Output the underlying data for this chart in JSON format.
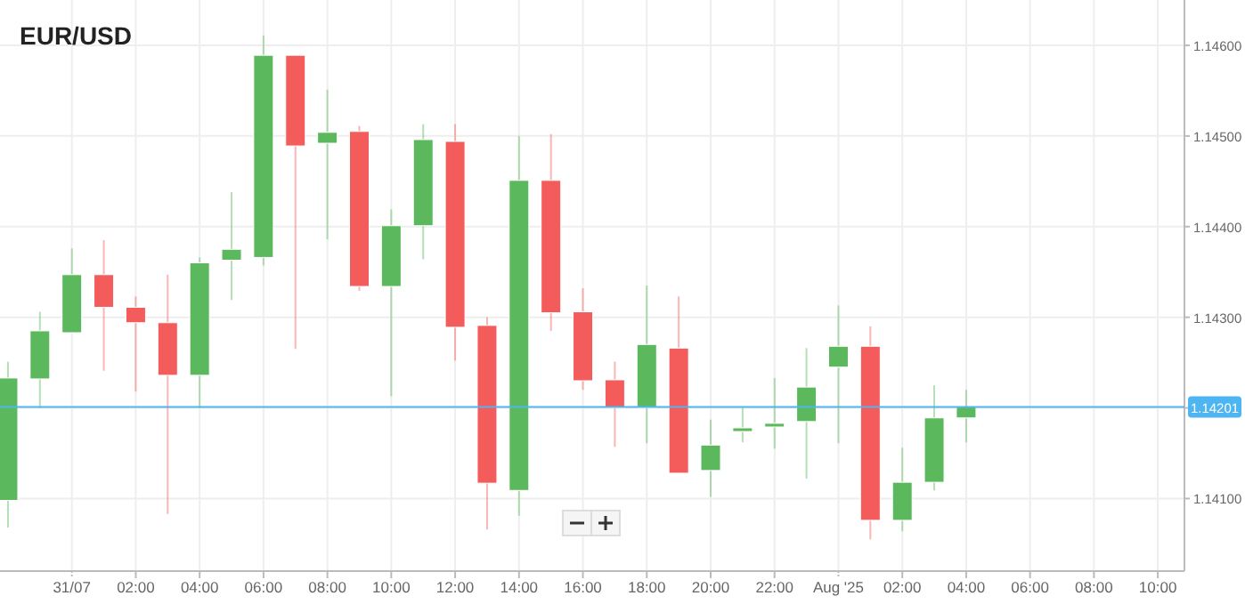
{
  "chart_data": {
    "type": "candlestick",
    "title": "EUR/USD",
    "x": [
      "2025-07-30T22:00",
      "2025-07-30T23:00",
      "2025-07-31T00:00",
      "2025-07-31T01:00",
      "2025-07-31T02:00",
      "2025-07-31T03:00",
      "2025-07-31T04:00",
      "2025-07-31T05:00",
      "2025-07-31T06:00",
      "2025-07-31T07:00",
      "2025-07-31T08:00",
      "2025-07-31T09:00",
      "2025-07-31T10:00",
      "2025-07-31T11:00",
      "2025-07-31T12:00",
      "2025-07-31T13:00",
      "2025-07-31T14:00",
      "2025-07-31T15:00",
      "2025-07-31T16:00",
      "2025-07-31T17:00",
      "2025-07-31T18:00",
      "2025-07-31T19:00",
      "2025-07-31T20:00",
      "2025-07-31T21:00",
      "2025-07-31T22:00",
      "2025-07-31T23:00",
      "2025-08-01T00:00",
      "2025-08-01T01:00",
      "2025-08-01T02:00",
      "2025-08-01T03:00",
      "2025-08-01T04:00"
    ],
    "ohlc": [
      [
        1.14098,
        1.14251,
        1.14068,
        1.14233
      ],
      [
        1.14232,
        1.14306,
        1.142,
        1.14285
      ],
      [
        1.14283,
        1.14376,
        1.14283,
        1.14347
      ],
      [
        1.14347,
        1.14385,
        1.14241,
        1.14311
      ],
      [
        1.14311,
        1.14323,
        1.14218,
        1.14294
      ],
      [
        1.14294,
        1.14347,
        1.14083,
        1.14236
      ],
      [
        1.14236,
        1.14366,
        1.142,
        1.1436
      ],
      [
        1.14363,
        1.14438,
        1.14319,
        1.14375
      ],
      [
        1.14366,
        1.14611,
        1.14357,
        1.14589
      ],
      [
        1.14589,
        1.14589,
        1.14265,
        1.14489
      ],
      [
        1.14492,
        1.14551,
        1.14386,
        1.14504
      ],
      [
        1.14505,
        1.14511,
        1.14329,
        1.14334
      ],
      [
        1.14334,
        1.14419,
        1.14213,
        1.14401
      ],
      [
        1.14401,
        1.14513,
        1.14364,
        1.14496
      ],
      [
        1.14494,
        1.14513,
        1.14252,
        1.14289
      ],
      [
        1.14291,
        1.143,
        1.14066,
        1.14117
      ],
      [
        1.14109,
        1.145,
        1.14081,
        1.14451
      ],
      [
        1.14451,
        1.14502,
        1.14285,
        1.14305
      ],
      [
        1.14306,
        1.14332,
        1.1422,
        1.1423
      ],
      [
        1.14231,
        1.14251,
        1.14157,
        1.142
      ],
      [
        1.142,
        1.14335,
        1.14161,
        1.1427
      ],
      [
        1.14266,
        1.14323,
        1.14128,
        1.14128
      ],
      [
        1.14131,
        1.14187,
        1.14102,
        1.14159
      ],
      [
        1.14174,
        1.142,
        1.14162,
        1.14178
      ],
      [
        1.14179,
        1.14233,
        1.14155,
        1.14183
      ],
      [
        1.14185,
        1.14266,
        1.14122,
        1.14223
      ],
      [
        1.14245,
        1.14313,
        1.14161,
        1.14268
      ],
      [
        1.14268,
        1.1429,
        1.14055,
        1.14076
      ],
      [
        1.14076,
        1.14156,
        1.14064,
        1.14118
      ],
      [
        1.14118,
        1.14225,
        1.14109,
        1.14189
      ],
      [
        1.14189,
        1.1422,
        1.14162,
        1.14201
      ]
    ],
    "colors": [
      "#5cb85c",
      "#5cb85c",
      "#5cb85c",
      "#f45b5b",
      "#f45b5b",
      "#f45b5b",
      "#5cb85c",
      "#5cb85c",
      "#5cb85c",
      "#f45b5b",
      "#5cb85c",
      "#f45b5b",
      "#5cb85c",
      "#5cb85c",
      "#f45b5b",
      "#f45b5b",
      "#5cb85c",
      "#f45b5b",
      "#f45b5b",
      "#f45b5b",
      "#5cb85c",
      "#f45b5b",
      "#5cb85c",
      "#5cb85c",
      "#5cb85c",
      "#5cb85c",
      "#5cb85c",
      "#f45b5b",
      "#5cb85c",
      "#5cb85c",
      "#5cb85c"
    ],
    "xlim": [
      "2025-07-30T21:45",
      "2025-08-01T10:50"
    ],
    "xticks": [
      {
        "value": "2025-07-31T00:00",
        "label": "31/07"
      },
      {
        "value": "2025-07-31T02:00",
        "label": "02:00"
      },
      {
        "value": "2025-07-31T04:00",
        "label": "04:00"
      },
      {
        "value": "2025-07-31T06:00",
        "label": "06:00"
      },
      {
        "value": "2025-07-31T08:00",
        "label": "08:00"
      },
      {
        "value": "2025-07-31T10:00",
        "label": "10:00"
      },
      {
        "value": "2025-07-31T12:00",
        "label": "12:00"
      },
      {
        "value": "2025-07-31T14:00",
        "label": "14:00"
      },
      {
        "value": "2025-07-31T16:00",
        "label": "16:00"
      },
      {
        "value": "2025-07-31T18:00",
        "label": "18:00"
      },
      {
        "value": "2025-07-31T20:00",
        "label": "20:00"
      },
      {
        "value": "2025-07-31T22:00",
        "label": "22:00"
      },
      {
        "value": "2025-08-01T00:00",
        "label": "Aug '25"
      },
      {
        "value": "2025-08-01T02:00",
        "label": "02:00"
      },
      {
        "value": "2025-08-01T04:00",
        "label": "04:00"
      },
      {
        "value": "2025-08-01T06:00",
        "label": "06:00"
      },
      {
        "value": "2025-08-01T08:00",
        "label": "08:00"
      },
      {
        "value": "2025-08-01T10:00",
        "label": "10:00"
      }
    ],
    "ylim": [
      1.1402,
      1.1465
    ],
    "yticks": [
      {
        "value": 1.141,
        "label": "1.14100"
      },
      {
        "value": 1.142,
        "label": null
      },
      {
        "value": 1.143,
        "label": "1.14300"
      },
      {
        "value": 1.144,
        "label": "1.14400"
      },
      {
        "value": 1.145,
        "label": "1.14500"
      },
      {
        "value": 1.146,
        "label": "1.14600"
      }
    ],
    "ref_lines": [
      {
        "axis": "y",
        "value": 1.14201,
        "label": "1.14201",
        "color": "#4db6f2"
      }
    ],
    "grid": true
  }
}
